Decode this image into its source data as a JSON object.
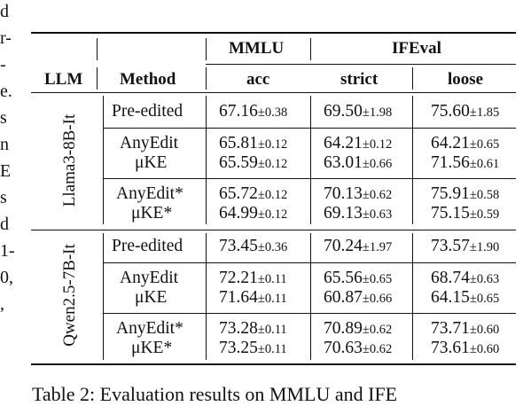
{
  "margin_fragments": [
    "d",
    "r-",
    "-",
    "e.",
    "s",
    "n",
    "E",
    "s",
    "d",
    "1-",
    "0,",
    ","
  ],
  "header": {
    "top": [
      "MMLU",
      "IFEval"
    ],
    "sub": [
      "LLM",
      "Method",
      "acc",
      "strict",
      "loose"
    ]
  },
  "groups": [
    {
      "llm": "Llama3-8B-It",
      "rows": [
        {
          "method": "Pre-edited",
          "acc": "67.16",
          "acc_pm": "±0.38",
          "strict": "69.50",
          "strict_pm": "±1.98",
          "loose": "75.60",
          "loose_pm": "±1.85"
        },
        {
          "method": "AnyEdit",
          "acc": "65.81",
          "acc_pm": "±0.12",
          "strict": "64.21",
          "strict_pm": "±0.12",
          "loose": "64.21",
          "loose_pm": "±0.65"
        },
        {
          "method": "μKE",
          "acc": "65.59",
          "acc_pm": "±0.12",
          "strict": "63.01",
          "strict_pm": "±0.66",
          "loose": "71.56",
          "loose_pm": "±0.61"
        },
        {
          "method": "AnyEdit*",
          "acc": "65.72",
          "acc_pm": "±0.12",
          "strict": "70.13",
          "strict_pm": "±0.62",
          "loose": "75.91",
          "loose_pm": "±0.58"
        },
        {
          "method": "μKE*",
          "acc": "64.99",
          "acc_pm": "±0.12",
          "strict": "69.13",
          "strict_pm": "±0.63",
          "loose": "75.15",
          "loose_pm": "±0.59"
        }
      ]
    },
    {
      "llm": "Qwen2.5-7B-It",
      "rows": [
        {
          "method": "Pre-edited",
          "acc": "73.45",
          "acc_pm": "±0.36",
          "strict": "70.24",
          "strict_pm": "±1.97",
          "loose": "73.57",
          "loose_pm": "±1.90"
        },
        {
          "method": "AnyEdit",
          "acc": "72.21",
          "acc_pm": "±0.11",
          "strict": "65.56",
          "strict_pm": "±0.65",
          "loose": "68.74",
          "loose_pm": "±0.63"
        },
        {
          "method": "μKE",
          "acc": "71.64",
          "acc_pm": "±0.11",
          "strict": "60.87",
          "strict_pm": "±0.66",
          "loose": "64.15",
          "loose_pm": "±0.65"
        },
        {
          "method": "AnyEdit*",
          "acc": "73.28",
          "acc_pm": "±0.11",
          "strict": "70.89",
          "strict_pm": "±0.62",
          "loose": "73.71",
          "loose_pm": "±0.60"
        },
        {
          "method": "μKE*",
          "acc": "73.25",
          "acc_pm": "±0.11",
          "strict": "70.63",
          "strict_pm": "±0.62",
          "loose": "73.61",
          "loose_pm": "±0.60"
        }
      ]
    }
  ],
  "caption": "Table 2: Evaluation results on MMLU and IFE"
}
